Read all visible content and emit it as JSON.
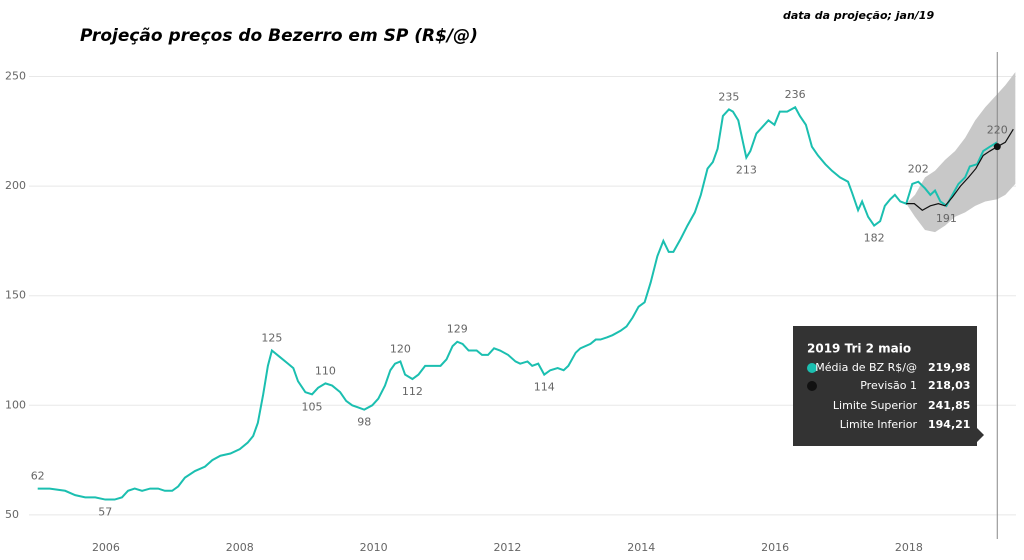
{
  "chart_data": {
    "type": "line",
    "title": "Projeção preços do Bezerro em SP (R$/@)",
    "subtitle": "data da projeção; jan/19",
    "xlim": [
      2004.85,
      2019.6
    ],
    "xticks": [
      2006,
      2008,
      2010,
      2012,
      2014,
      2016,
      2018
    ],
    "ylim": [
      39,
      258
    ],
    "yticks": [
      50,
      100,
      150,
      200,
      250
    ],
    "grid": true,
    "series": [
      {
        "name": "Média de BZ R$/@",
        "color": "#1bbfb0",
        "x": [
          2004.98,
          2005.16,
          2005.39,
          2005.54,
          2005.69,
          2005.84,
          2005.99,
          2006.13,
          2006.24,
          2006.33,
          2006.43,
          2006.54,
          2006.66,
          2006.78,
          2006.88,
          2006.99,
          2007.08,
          2007.18,
          2007.33,
          2007.48,
          2007.59,
          2007.71,
          2007.86,
          2008.0,
          2008.12,
          2008.2,
          2008.27,
          2008.35,
          2008.42,
          2008.48,
          2008.6,
          2008.72,
          2008.8,
          2008.87,
          2008.98,
          2009.08,
          2009.17,
          2009.28,
          2009.38,
          2009.5,
          2009.59,
          2009.68,
          2009.77,
          2009.86,
          2009.98,
          2010.07,
          2010.17,
          2010.25,
          2010.32,
          2010.4,
          2010.47,
          2010.58,
          2010.67,
          2010.77,
          2010.88,
          2011.0,
          2011.09,
          2011.18,
          2011.25,
          2011.33,
          2011.42,
          2011.54,
          2011.62,
          2011.71,
          2011.8,
          2011.89,
          2012.01,
          2012.12,
          2012.19,
          2012.3,
          2012.37,
          2012.46,
          2012.55,
          2012.64,
          2012.75,
          2012.84,
          2012.91,
          2013.02,
          2013.09,
          2013.24,
          2013.32,
          2013.39,
          2013.49,
          2013.57,
          2013.69,
          2013.78,
          2013.87,
          2013.96,
          2014.05,
          2014.14,
          2014.24,
          2014.33,
          2014.41,
          2014.48,
          2014.59,
          2014.69,
          2014.8,
          2014.89,
          2014.99,
          2015.07,
          2015.14,
          2015.22,
          2015.31,
          2015.37,
          2015.45,
          2015.52,
          2015.57,
          2015.63,
          2015.72,
          2015.81,
          2015.9,
          2015.99,
          2016.07,
          2016.18,
          2016.3,
          2016.37,
          2016.46,
          2016.55,
          2016.64,
          2016.75,
          2016.85,
          2016.97,
          2017.09,
          2017.15,
          2017.24,
          2017.3,
          2017.39,
          2017.48,
          2017.57,
          2017.64,
          2017.72,
          2017.79,
          2017.87,
          2017.96,
          2018.05,
          2018.14,
          2018.24,
          2018.32,
          2018.39,
          2018.47,
          2018.56,
          2018.65,
          2018.74,
          2018.84,
          2018.91,
          2019.02,
          2019.11,
          2019.21,
          2019.32
        ],
        "values": [
          62,
          62,
          61,
          59,
          58,
          58,
          57,
          57,
          58,
          61,
          62,
          61,
          62,
          62,
          61,
          61,
          63,
          67,
          70,
          72,
          75,
          77,
          78,
          80,
          83,
          86,
          92,
          105,
          118,
          125,
          122,
          119,
          117,
          111,
          106,
          105,
          108,
          110,
          109,
          106,
          102,
          100,
          99,
          98,
          100,
          103,
          109,
          116,
          119,
          120,
          114,
          112,
          114,
          118,
          118,
          118,
          121,
          127,
          129,
          128,
          125,
          125,
          123,
          123,
          126,
          125,
          123,
          120,
          119,
          120,
          118,
          119,
          114,
          116,
          117,
          116,
          118,
          124,
          126,
          128,
          130,
          130,
          131,
          132,
          134,
          136,
          140,
          145,
          147,
          156,
          168,
          175,
          170,
          170,
          176,
          182,
          188,
          196,
          208,
          211,
          217,
          232,
          235,
          234,
          230,
          220,
          213,
          216,
          224,
          227,
          230,
          228,
          234,
          234,
          236,
          232,
          228,
          218,
          214,
          210,
          207,
          204,
          202,
          197,
          189,
          193,
          186,
          182,
          184,
          191,
          194,
          196,
          193,
          192,
          201,
          202,
          199,
          196,
          198,
          193,
          191,
          196,
          201,
          204,
          209,
          210,
          216,
          218,
          220
        ],
        "value_labels": [
          62,
          null,
          null,
          null,
          null,
          null,
          57,
          null,
          null,
          null,
          null,
          null,
          null,
          null,
          null,
          null,
          null,
          null,
          null,
          null,
          null,
          null,
          null,
          null,
          null,
          null,
          null,
          null,
          null,
          125,
          null,
          null,
          null,
          null,
          null,
          105,
          null,
          110,
          null,
          null,
          null,
          null,
          null,
          98,
          null,
          null,
          null,
          null,
          null,
          120,
          null,
          112,
          null,
          null,
          null,
          null,
          null,
          null,
          129,
          null,
          null,
          null,
          null,
          null,
          null,
          null,
          null,
          null,
          null,
          null,
          null,
          null,
          114,
          null,
          null,
          null,
          null,
          null,
          null,
          null,
          null,
          null,
          null,
          null,
          null,
          null,
          null,
          null,
          null,
          null,
          null,
          null,
          null,
          null,
          null,
          null,
          null,
          null,
          null,
          null,
          null,
          null,
          235,
          null,
          null,
          null,
          213,
          null,
          null,
          null,
          null,
          null,
          null,
          null,
          236,
          null,
          null,
          null,
          null,
          null,
          null,
          null,
          null,
          null,
          null,
          null,
          null,
          182,
          null,
          null,
          null,
          null,
          null,
          null,
          null,
          202,
          null,
          null,
          null,
          null,
          191,
          null,
          null,
          null,
          null,
          null,
          null,
          null,
          220
        ]
      },
      {
        "name": "Previsão 1",
        "color": "#111111",
        "x": [
          2017.96,
          2018.08,
          2018.2,
          2018.32,
          2018.44,
          2018.54,
          2018.65,
          2018.77,
          2018.89,
          2019.0,
          2019.11,
          2019.21,
          2019.32,
          2019.44,
          2019.56
        ],
        "values": [
          192,
          192,
          189,
          191,
          192,
          191,
          195,
          200,
          204,
          208,
          214,
          216,
          218,
          220,
          226
        ]
      },
      {
        "name": "Limite Superior",
        "color": "#c8c8c8",
        "x": [
          2017.96,
          2018.09,
          2018.24,
          2018.39,
          2018.54,
          2018.69,
          2018.84,
          2018.99,
          2019.14,
          2019.32,
          2019.44,
          2019.59
        ],
        "values": [
          192,
          196,
          204,
          207,
          212,
          216,
          222,
          230,
          236,
          242,
          246,
          252
        ]
      },
      {
        "name": "Limite Inferior",
        "color": "#c8c8c8",
        "x": [
          2017.96,
          2018.09,
          2018.24,
          2018.39,
          2018.54,
          2018.69,
          2018.84,
          2018.99,
          2019.14,
          2019.32,
          2019.44,
          2019.59
        ],
        "values": [
          192,
          186,
          180,
          179,
          182,
          186,
          188,
          191,
          193,
          194,
          196,
          201
        ]
      }
    ],
    "tooltip": {
      "title": "2019 Tri 2 maio",
      "values": [
        "219,98",
        "218,03",
        "241,85",
        "194,21"
      ]
    }
  }
}
